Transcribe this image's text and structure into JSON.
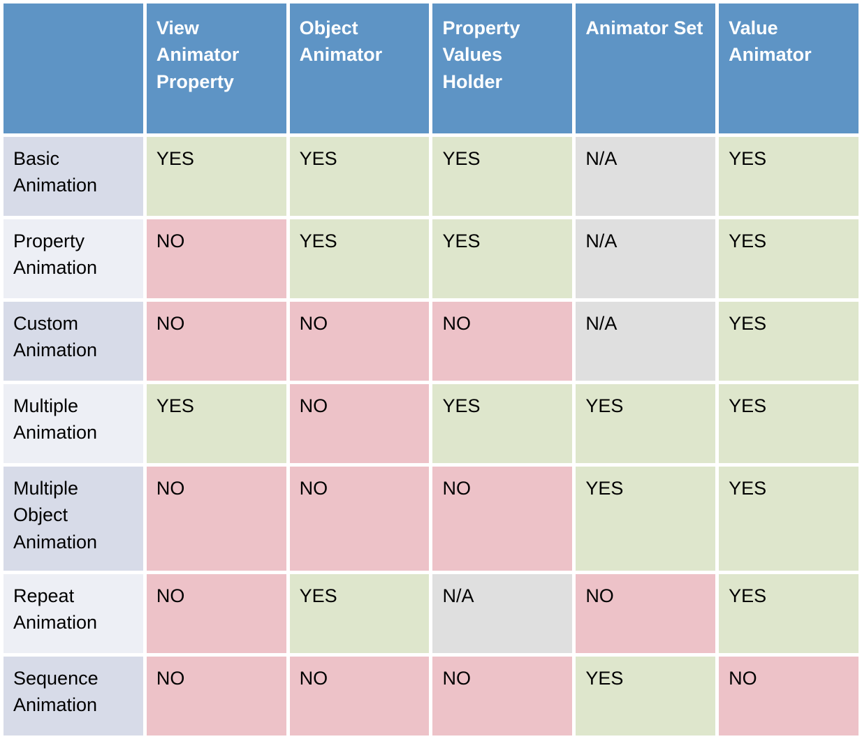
{
  "chart_data": {
    "type": "table",
    "columns": [
      "",
      "View Animator Property",
      "Object Animator",
      "Property Values Holder",
      "Animator Set",
      "Value Animator"
    ],
    "rows": [
      {
        "label": "Basic Animation",
        "values": [
          "YES",
          "YES",
          "YES",
          "N/A",
          "YES"
        ]
      },
      {
        "label": "Property Animation",
        "values": [
          "NO",
          "YES",
          "YES",
          "N/A",
          "YES"
        ]
      },
      {
        "label": "Custom Animation",
        "values": [
          "NO",
          "NO",
          "NO",
          "N/A",
          "YES"
        ]
      },
      {
        "label": "Multiple Animation",
        "values": [
          "YES",
          "NO",
          "YES",
          "YES",
          "YES"
        ]
      },
      {
        "label": "Multiple Object Animation",
        "values": [
          "NO",
          "NO",
          "NO",
          "YES",
          "YES"
        ]
      },
      {
        "label": "Repeat Animation",
        "values": [
          "NO",
          "YES",
          "N/A",
          "NO",
          "YES"
        ]
      },
      {
        "label": "Sequence Animation",
        "values": [
          "NO",
          "NO",
          "NO",
          "YES",
          "NO"
        ]
      }
    ]
  },
  "colors": {
    "header_bg": "#5E94C5",
    "header_text": "#FFFFFF",
    "yes_bg": "#DEE6CC",
    "no_bg": "#EDC2C8",
    "na_bg": "#DFDFDF",
    "label_dark_bg": "#D7DBE8",
    "label_light_bg": "#EDEFF5",
    "cell_text": "#000000",
    "gap": "#FFFFFF"
  }
}
